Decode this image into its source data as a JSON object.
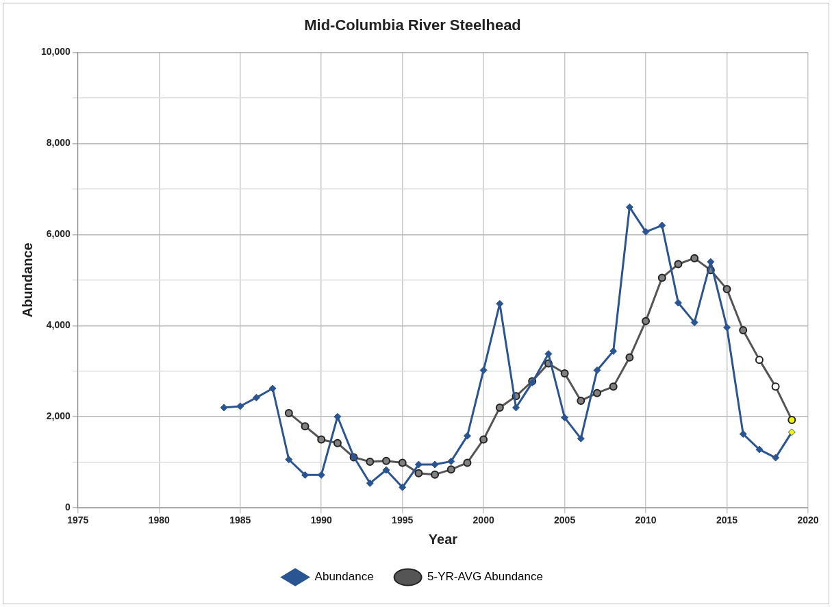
{
  "chart_data": {
    "type": "line",
    "title": "Mid-Columbia River Steelhead",
    "xlabel": "Year",
    "ylabel": "Abundance",
    "xlim": [
      1975,
      2020
    ],
    "xticks": [
      1975,
      1980,
      1985,
      1990,
      1995,
      2000,
      2005,
      2010,
      2015,
      2020
    ],
    "ylim": [
      0,
      10000
    ],
    "yticks": [
      {
        "value": 0,
        "label": "0"
      },
      {
        "value": 1000,
        "label": null
      },
      {
        "value": 2000,
        "label": "2,000"
      },
      {
        "value": 3000,
        "label": null
      },
      {
        "value": 4000,
        "label": "4,000"
      },
      {
        "value": 5000,
        "label": null
      },
      {
        "value": 6000,
        "label": "6,000"
      },
      {
        "value": 7000,
        "label": null
      },
      {
        "value": 8000,
        "label": "8,000"
      },
      {
        "value": 9000,
        "label": null
      },
      {
        "value": 10000,
        "label": "10,000"
      }
    ],
    "grid": true,
    "legend": "bottom",
    "series": [
      {
        "name": "Abundance",
        "color": "#2a5592",
        "marker": "diamond",
        "x": [
          1984,
          1985,
          1986,
          1987,
          1988,
          1989,
          1990,
          1991,
          1992,
          1993,
          1994,
          1995,
          1996,
          1997,
          1998,
          1999,
          2000,
          2001,
          2002,
          2003,
          2004,
          2005,
          2006,
          2007,
          2008,
          2009,
          2010,
          2011,
          2012,
          2013,
          2014,
          2015,
          2016,
          2017,
          2018,
          2019
        ],
        "values": [
          2200,
          2230,
          2420,
          2620,
          1060,
          720,
          720,
          2000,
          1120,
          540,
          830,
          450,
          950,
          950,
          1020,
          1580,
          3020,
          4480,
          2200,
          2750,
          3380,
          1980,
          1520,
          3020,
          3440,
          6600,
          6060,
          6200,
          4500,
          4070,
          5400,
          3960,
          1620,
          1280,
          1100,
          1660
        ],
        "colors": [
          "#2a5592",
          "#2a5592",
          "#2a5592",
          "#2a5592",
          "#2a5592",
          "#2a5592",
          "#2a5592",
          "#2a5592",
          "#2a5592",
          "#2a5592",
          "#2a5592",
          "#2a5592",
          "#2a5592",
          "#2a5592",
          "#2a5592",
          "#2a5592",
          "#2a5592",
          "#2a5592",
          "#2a5592",
          "#2a5592",
          "#2a5592",
          "#2a5592",
          "#2a5592",
          "#2a5592",
          "#2a5592",
          "#2a5592",
          "#2a5592",
          "#2a5592",
          "#2a5592",
          "#2a5592",
          "#2a5592",
          "#2a5592",
          "#2a5592",
          "#2a5592",
          "#2a5592",
          "#f2f20a"
        ]
      },
      {
        "name": "5-YR-AVG Abundance",
        "color": "#555555",
        "marker": "circle",
        "x": [
          1988,
          1989,
          1990,
          1991,
          1992,
          1993,
          1994,
          1995,
          1996,
          1997,
          1998,
          1999,
          2000,
          2001,
          2002,
          2003,
          2004,
          2005,
          2006,
          2007,
          2008,
          2009,
          2010,
          2011,
          2012,
          2013,
          2014,
          2015,
          2016,
          2017,
          2018,
          2019
        ],
        "values": [
          2080,
          1790,
          1500,
          1420,
          1110,
          1010,
          1030,
          990,
          760,
          730,
          840,
          990,
          1500,
          2200,
          2450,
          2780,
          3170,
          2950,
          2350,
          2520,
          2660,
          3300,
          4100,
          5050,
          5350,
          5480,
          5220,
          4800,
          3900,
          3250,
          2660,
          1930
        ],
        "colors": [
          "#808080",
          "#808080",
          "#808080",
          "#808080",
          "#808080",
          "#808080",
          "#808080",
          "#808080",
          "#808080",
          "#808080",
          "#808080",
          "#808080",
          "#808080",
          "#808080",
          "#808080",
          "#808080",
          "#808080",
          "#808080",
          "#808080",
          "#808080",
          "#808080",
          "#808080",
          "#808080",
          "#808080",
          "#808080",
          "#808080",
          "#808080",
          "#808080",
          "#808080",
          "#ffffff",
          "#ffffff",
          "#f2f20a"
        ]
      }
    ]
  }
}
